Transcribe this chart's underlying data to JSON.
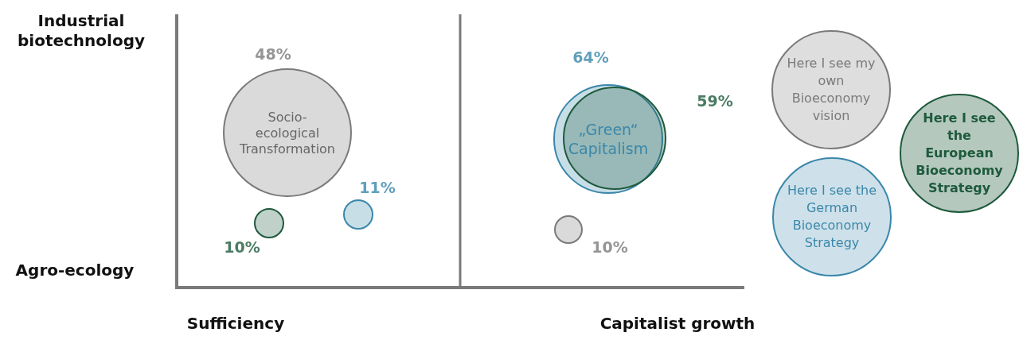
{
  "chart_data": {
    "type": "other",
    "categories": [
      "Sufficiency",
      "Capitalist growth"
    ],
    "annotations": [
      "Industrial biotechnology",
      "Agro-ecology",
      "Socio-\necological\nTransformation",
      "„Green“\nCapitalism"
    ],
    "series": [
      {
        "name": "Here I see my own Bioeconomy vision",
        "color": "#7a7a7a",
        "values": [
          48,
          10
        ],
        "value_labels": [
          "48%",
          "10%"
        ]
      },
      {
        "name": "Here I see the German Bioeconomy Strategy",
        "color": "#3b87aa",
        "values": [
          11,
          64
        ],
        "value_labels": [
          "11%",
          "64%"
        ]
      },
      {
        "name": "Here I see the European Bioeconomy Strategy",
        "color": "#1e5a3c",
        "values": [
          10,
          59
        ],
        "value_labels": [
          "10%",
          "59%"
        ]
      }
    ]
  }
}
